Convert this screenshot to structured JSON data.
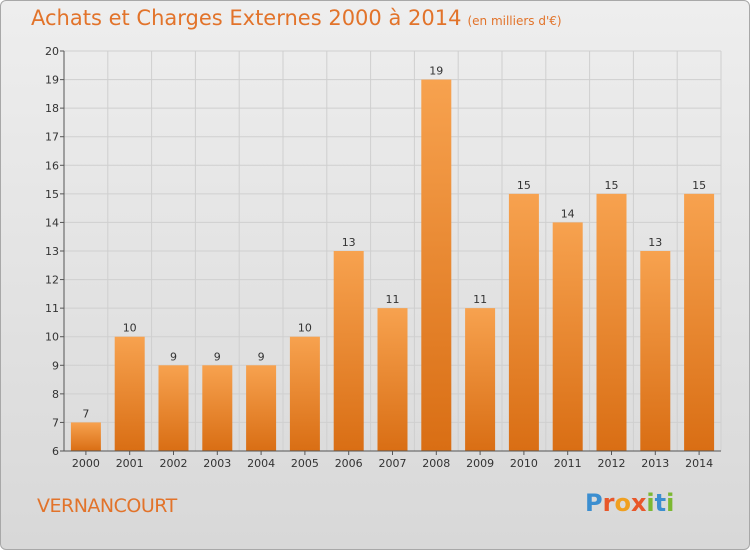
{
  "header": {
    "title": "Achats et Charges Externes 2000 à 2014",
    "subtitle": "(en milliers d'€)"
  },
  "footer": {
    "commune": "VERNANCOURT",
    "logo_letters": [
      "P",
      "r",
      "o",
      "x",
      "i",
      "t",
      "i"
    ],
    "logo_colors": [
      "#3b8ed0",
      "#e8572a",
      "#f0a020",
      "#e8572a",
      "#7cb832",
      "#3b8ed0",
      "#7cb832"
    ]
  },
  "colors": {
    "accent": "#e2732a",
    "bar_top": "#f7a24f",
    "bar_bottom": "#d96e14",
    "grid": "#cfcfcf",
    "axis": "#555555"
  },
  "chart_data": {
    "type": "bar",
    "categories": [
      "2000",
      "2001",
      "2002",
      "2003",
      "2004",
      "2005",
      "2006",
      "2007",
      "2008",
      "2009",
      "2010",
      "2011",
      "2012",
      "2013",
      "2014"
    ],
    "values": [
      7,
      10,
      9,
      9,
      9,
      10,
      13,
      11,
      19,
      11,
      15,
      14,
      15,
      13,
      15
    ],
    "title": "Achats et Charges Externes 2000 à 2014",
    "subtitle": "(en milliers d'€)",
    "xlabel": "",
    "ylabel": "",
    "ylim": [
      6,
      20
    ],
    "yticks": [
      6,
      7,
      8,
      9,
      10,
      11,
      12,
      13,
      14,
      15,
      16,
      17,
      18,
      19,
      20
    ],
    "grid": true,
    "data_labels": true
  }
}
